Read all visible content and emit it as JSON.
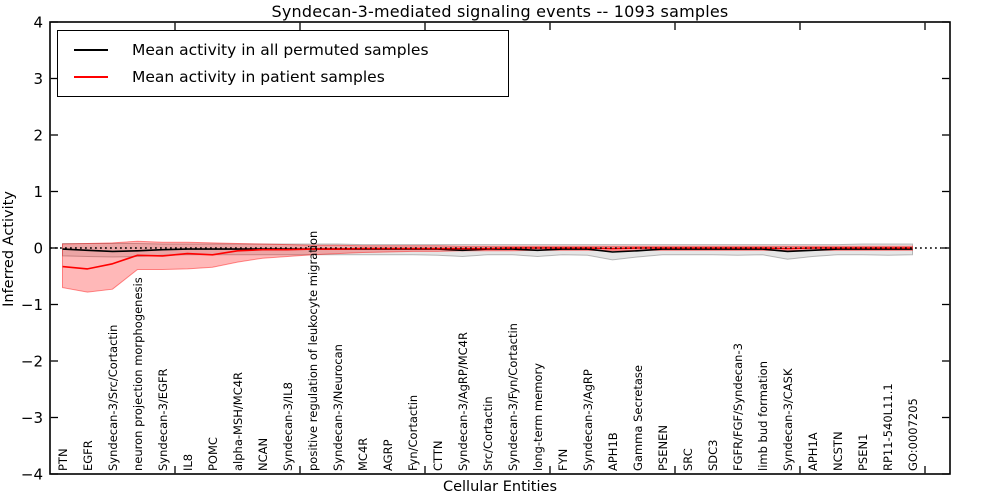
{
  "chart_data": {
    "type": "line",
    "title": "Syndecan-3-mediated signaling events -- 1093 samples",
    "xlabel": "Cellular Entities",
    "ylabel": "Inferred Activity",
    "ylim": [
      -4,
      4
    ],
    "grid": false,
    "legend_position": "upper-left",
    "frame_color": "#000000",
    "background_color": "#ffffff",
    "zero_line": {
      "value": 0,
      "style": "dotted",
      "color": "#000000"
    },
    "x_tick_positions": [
      5,
      10,
      15,
      20,
      25,
      30,
      35
    ],
    "y_ticks": [
      {
        "value": 4,
        "label": "4"
      },
      {
        "value": 3,
        "label": "3"
      },
      {
        "value": 2,
        "label": "2"
      },
      {
        "value": 1,
        "label": "1"
      },
      {
        "value": 0,
        "label": "0"
      },
      {
        "value": -1,
        "label": "−1"
      },
      {
        "value": -2,
        "label": "−2"
      },
      {
        "value": -3,
        "label": "−3"
      },
      {
        "value": -4,
        "label": "−4"
      }
    ],
    "categories": [
      "PTN",
      "EGFR",
      "Syndecan-3/Src/Cortactin",
      "neuron projection morphogenesis",
      "Syndecan-3/EGFR",
      "IL8",
      "POMC",
      "alpha-MSH/MC4R",
      "NCAN",
      "Syndecan-3/IL8",
      "positive regulation of leukocyte migration",
      "Syndecan-3/Neurocan",
      "MC4R",
      "AGRP",
      "Fyn/Cortactin",
      "CTTN",
      "Syndecan-3/AgRP/MC4R",
      "Src/Cortactin",
      "Syndecan-3/Fyn/Cortactin",
      "long-term memory",
      "FYN",
      "Syndecan-3/AgRP",
      "APH1B",
      "Gamma Secretase",
      "PSENEN",
      "SRC",
      "SDC3",
      "FGFR/FGF/Syndecan-3",
      "limb bud formation",
      "Syndecan-3/CASK",
      "APH1A",
      "NCSTN",
      "PSEN1",
      "RP11-540L11.1",
      "GO:0007205"
    ],
    "series": [
      {
        "name": "Mean activity in all permuted samples",
        "color": "#000000",
        "band_opacity": 0.1,
        "mean": [
          -0.02,
          -0.04,
          -0.06,
          -0.05,
          -0.03,
          -0.02,
          -0.02,
          -0.02,
          -0.02,
          -0.02,
          -0.02,
          -0.02,
          -0.02,
          -0.02,
          -0.02,
          -0.02,
          -0.04,
          -0.02,
          -0.02,
          -0.04,
          -0.02,
          -0.02,
          -0.07,
          -0.05,
          -0.02,
          -0.02,
          -0.02,
          -0.02,
          -0.02,
          -0.06,
          -0.04,
          -0.02,
          -0.02,
          -0.02,
          -0.02
        ],
        "band_upper": [
          0.08,
          0.08,
          0.08,
          0.08,
          0.07,
          0.07,
          0.07,
          0.07,
          0.07,
          0.07,
          0.07,
          0.07,
          0.06,
          0.06,
          0.06,
          0.06,
          0.06,
          0.06,
          0.06,
          0.06,
          0.06,
          0.06,
          0.06,
          0.06,
          0.06,
          0.06,
          0.06,
          0.06,
          0.06,
          0.06,
          0.06,
          0.06,
          0.07,
          0.07,
          0.07
        ],
        "band_lower": [
          -0.14,
          -0.15,
          -0.16,
          -0.15,
          -0.13,
          -0.12,
          -0.12,
          -0.12,
          -0.12,
          -0.12,
          -0.12,
          -0.12,
          -0.12,
          -0.12,
          -0.12,
          -0.13,
          -0.15,
          -0.12,
          -0.12,
          -0.15,
          -0.12,
          -0.13,
          -0.21,
          -0.16,
          -0.12,
          -0.12,
          -0.12,
          -0.13,
          -0.12,
          -0.2,
          -0.15,
          -0.12,
          -0.12,
          -0.13,
          -0.12
        ]
      },
      {
        "name": "Mean activity in patient samples",
        "color": "#ff0000",
        "band_opacity": 0.28,
        "mean": [
          -0.33,
          -0.37,
          -0.28,
          -0.13,
          -0.14,
          -0.1,
          -0.12,
          -0.05,
          -0.03,
          -0.03,
          -0.02,
          -0.02,
          -0.01,
          -0.01,
          -0.01,
          -0.01,
          -0.01,
          -0.01,
          0,
          0,
          0,
          0,
          -0.01,
          0,
          0,
          0,
          0,
          0,
          0,
          -0.01,
          0,
          0,
          0,
          0,
          0
        ],
        "band_upper": [
          0.07,
          0.08,
          0.09,
          0.12,
          0.1,
          0.1,
          0.09,
          0.08,
          0.07,
          0.06,
          0.05,
          0.05,
          0.04,
          0.04,
          0.04,
          0.04,
          0.03,
          0.03,
          0.03,
          0.03,
          0.03,
          0.03,
          0.03,
          0.03,
          0.03,
          0.03,
          0.03,
          0.03,
          0.03,
          0.03,
          0.03,
          0.03,
          0.03,
          0.03,
          0.03
        ],
        "band_lower": [
          -0.7,
          -0.78,
          -0.73,
          -0.38,
          -0.38,
          -0.37,
          -0.34,
          -0.25,
          -0.18,
          -0.15,
          -0.12,
          -0.1,
          -0.08,
          -0.07,
          -0.06,
          -0.06,
          -0.05,
          -0.05,
          -0.05,
          -0.04,
          -0.04,
          -0.04,
          -0.05,
          -0.04,
          -0.04,
          -0.04,
          -0.04,
          -0.04,
          -0.04,
          -0.05,
          -0.04,
          -0.04,
          -0.04,
          -0.04,
          -0.04
        ]
      }
    ]
  }
}
